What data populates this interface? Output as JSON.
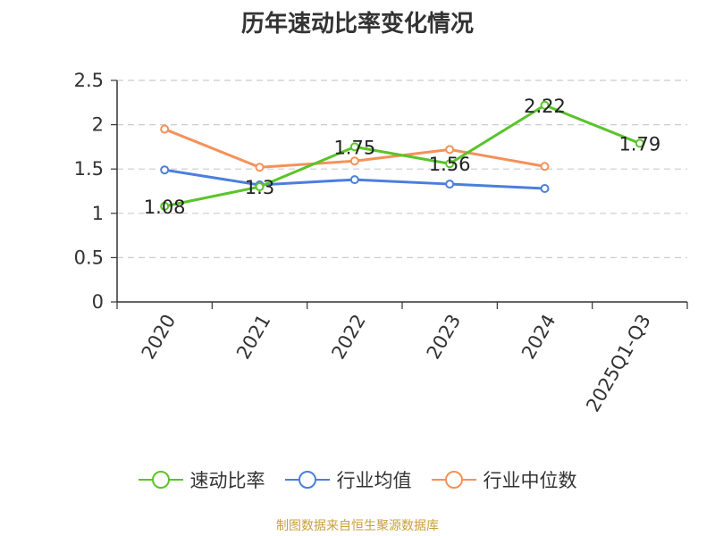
{
  "title": "历年速动比率变化情况",
  "source": "制图数据来自恒生聚源数据库",
  "chart_data": {
    "type": "line",
    "title": "历年速动比率变化情况",
    "categories": [
      "2020",
      "2021",
      "2022",
      "2023",
      "2024",
      "2025Q1-Q3"
    ],
    "ylim": [
      0,
      2.5
    ],
    "yticks": [
      "0",
      "0.5",
      "1",
      "1.5",
      "2",
      "2.5"
    ],
    "grid": true,
    "legend_position": "bottom",
    "series": [
      {
        "name": "速动比率",
        "color": "#5ac42b",
        "values": [
          1.08,
          1.3,
          1.75,
          1.56,
          2.22,
          1.79
        ],
        "labels": [
          "1.08",
          "1.3",
          "1.75",
          "1.56",
          "2.22",
          "1.79"
        ]
      },
      {
        "name": "行业均值",
        "color": "#4a7fdc",
        "values": [
          1.49,
          1.32,
          1.38,
          1.33,
          1.28,
          null
        ]
      },
      {
        "name": "行业中位数",
        "color": "#f59159",
        "values": [
          1.95,
          1.52,
          1.59,
          1.72,
          1.53,
          null
        ]
      }
    ]
  }
}
